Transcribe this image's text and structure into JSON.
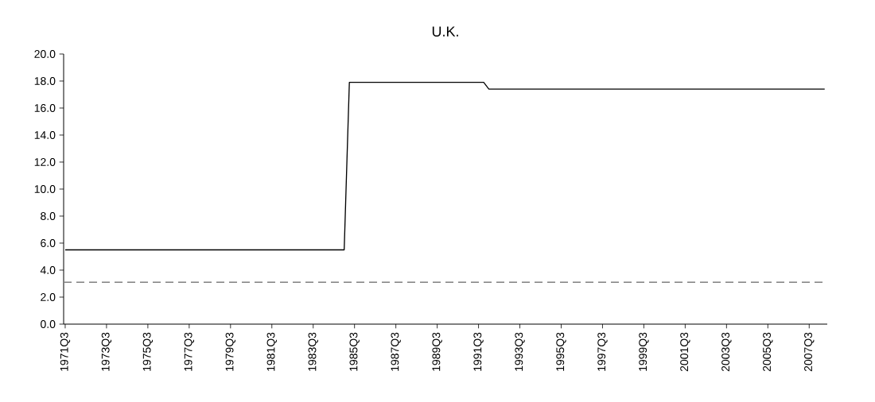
{
  "chart_data": {
    "type": "line",
    "title": "U.K.",
    "categories": [
      "1971Q3",
      null,
      null,
      null,
      null,
      null,
      null,
      null,
      "1973Q3",
      null,
      null,
      null,
      null,
      null,
      null,
      null,
      "1975Q3",
      null,
      null,
      null,
      null,
      null,
      null,
      null,
      "1977Q3",
      null,
      null,
      null,
      null,
      null,
      null,
      null,
      "1979Q3",
      null,
      null,
      null,
      null,
      null,
      null,
      null,
      "1981Q3",
      null,
      null,
      null,
      null,
      null,
      null,
      null,
      "1983Q3",
      null,
      null,
      null,
      null,
      null,
      null,
      null,
      "1985Q3",
      null,
      null,
      null,
      null,
      null,
      null,
      null,
      "1987Q3",
      null,
      null,
      null,
      null,
      null,
      null,
      null,
      "1989Q3",
      null,
      null,
      null,
      null,
      null,
      null,
      null,
      "1991Q3",
      null,
      null,
      null,
      null,
      null,
      null,
      null,
      "1993Q3",
      null,
      null,
      null,
      null,
      null,
      null,
      null,
      "1995Q3",
      null,
      null,
      null,
      null,
      null,
      null,
      null,
      "1997Q3",
      null,
      null,
      null,
      null,
      null,
      null,
      null,
      "1999Q3",
      null,
      null,
      null,
      null,
      null,
      null,
      null,
      "2001Q3",
      null,
      null,
      null,
      null,
      null,
      null,
      null,
      "2003Q3",
      null,
      null,
      null,
      null,
      null,
      null,
      null,
      "2005Q3",
      null,
      null,
      null,
      null,
      null,
      null,
      null,
      "2007Q3",
      null,
      null,
      null
    ],
    "values": [
      5.5,
      5.5,
      5.5,
      5.5,
      5.5,
      5.5,
      5.5,
      5.5,
      5.5,
      5.5,
      5.5,
      5.5,
      5.5,
      5.5,
      5.5,
      5.5,
      5.5,
      5.5,
      5.5,
      5.5,
      5.5,
      5.5,
      5.5,
      5.5,
      5.5,
      5.5,
      5.5,
      5.5,
      5.5,
      5.5,
      5.5,
      5.5,
      5.5,
      5.5,
      5.5,
      5.5,
      5.5,
      5.5,
      5.5,
      5.5,
      5.5,
      5.5,
      5.5,
      5.5,
      5.5,
      5.5,
      5.5,
      5.5,
      5.5,
      5.5,
      5.5,
      5.5,
      5.5,
      5.5,
      5.5,
      17.9,
      17.9,
      17.9,
      17.9,
      17.9,
      17.9,
      17.9,
      17.9,
      17.9,
      17.9,
      17.9,
      17.9,
      17.9,
      17.9,
      17.9,
      17.9,
      17.9,
      17.9,
      17.9,
      17.9,
      17.9,
      17.9,
      17.9,
      17.9,
      17.9,
      17.9,
      17.9,
      17.4,
      17.4,
      17.4,
      17.4,
      17.4,
      17.4,
      17.4,
      17.4,
      17.4,
      17.4,
      17.4,
      17.4,
      17.4,
      17.4,
      17.4,
      17.4,
      17.4,
      17.4,
      17.4,
      17.4,
      17.4,
      17.4,
      17.4,
      17.4,
      17.4,
      17.4,
      17.4,
      17.4,
      17.4,
      17.4,
      17.4,
      17.4,
      17.4,
      17.4,
      17.4,
      17.4,
      17.4,
      17.4,
      17.4,
      17.4,
      17.4,
      17.4,
      17.4,
      17.4,
      17.4,
      17.4,
      17.4,
      17.4,
      17.4,
      17.4,
      17.4,
      17.4,
      17.4,
      17.4,
      17.4,
      17.4,
      17.4,
      17.4,
      17.4,
      17.4,
      17.4,
      17.4,
      17.4,
      17.4,
      17.4,
      17.4
    ],
    "color": "#000000",
    "ylim": [
      0,
      20
    ],
    "yticks": [
      {
        "value": 0,
        "label": "0.0"
      },
      {
        "value": 2,
        "label": "2.0"
      },
      {
        "value": 4,
        "label": "4.0"
      },
      {
        "value": 6,
        "label": "6.0"
      },
      {
        "value": 8,
        "label": "8.0"
      },
      {
        "value": 10,
        "label": "10.0"
      },
      {
        "value": 12,
        "label": "12.0"
      },
      {
        "value": 14,
        "label": "14.0"
      },
      {
        "value": 16,
        "label": "16.0"
      },
      {
        "value": 18,
        "label": "18.0"
      },
      {
        "value": 20,
        "label": "20.0"
      }
    ],
    "ref_lines": [
      {
        "axis": "y",
        "value": 3.1,
        "color": "#808080",
        "line_style": "dashed"
      }
    ]
  }
}
